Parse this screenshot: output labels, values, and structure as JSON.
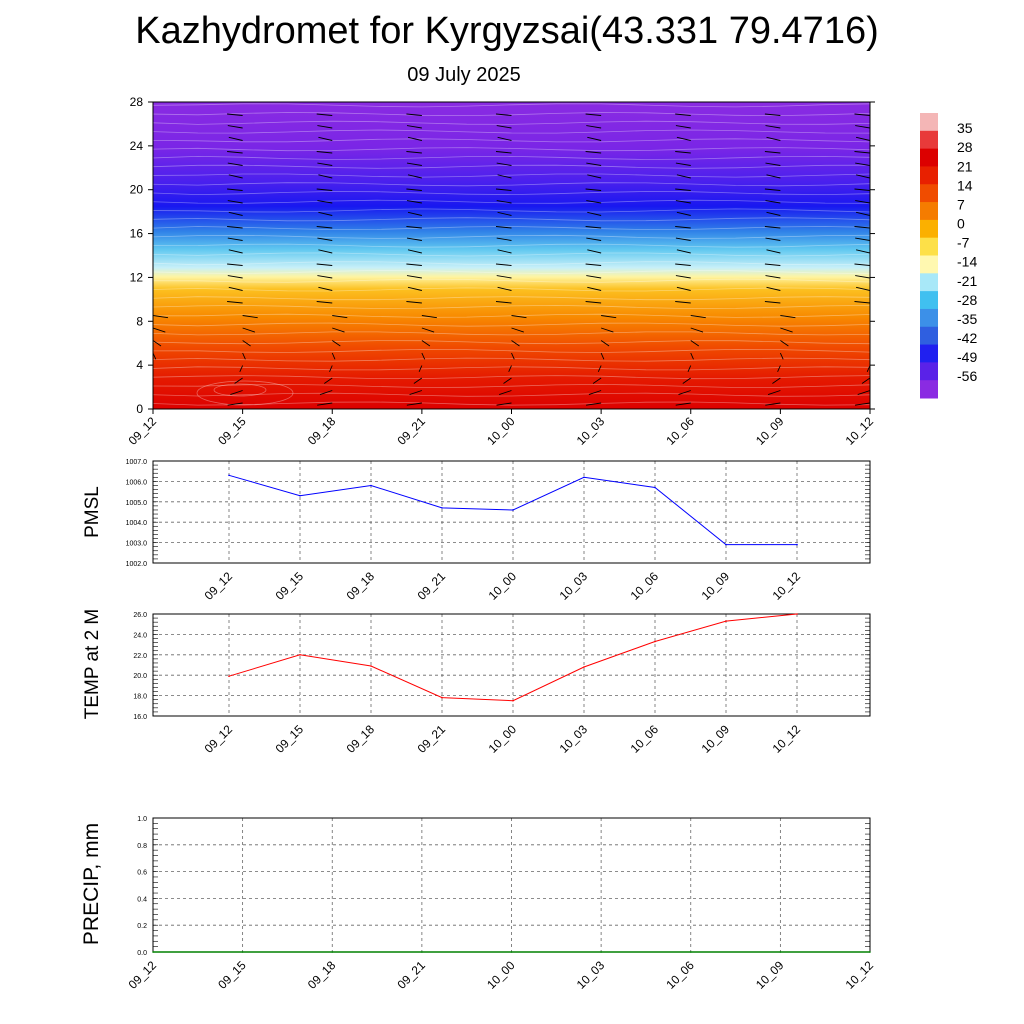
{
  "title": "Kazhydromet for Kyrgyzsai(43.331 79.4716)",
  "subtitle": "09 July 2025",
  "colorbar": {
    "labels": [
      "35",
      "28",
      "21",
      "14",
      "7",
      "0",
      "-7",
      "-14",
      "-21",
      "-28",
      "-35",
      "-42",
      "-49",
      "-56"
    ],
    "colors": [
      "#f4b6b6",
      "#e83a3a",
      "#dc0000",
      "#e82000",
      "#f04c00",
      "#f57c00",
      "#fbb000",
      "#fde048",
      "#fff8b0",
      "#a8e8f8",
      "#40c0f0",
      "#3c90e8",
      "#2f5fe0",
      "#2020f0",
      "#5a22e8",
      "#8a2be2"
    ]
  },
  "chart_data": [
    {
      "type": "heatmap",
      "name": "vertical-profile",
      "x": [
        "09_12",
        "09_15",
        "09_18",
        "09_21",
        "10_00",
        "10_03",
        "10_06",
        "10_09",
        "10_12"
      ],
      "y_ticks": [
        0,
        4,
        8,
        12,
        16,
        20,
        24,
        28
      ],
      "ylim": [
        0,
        28
      ],
      "value_range": [
        -56,
        35
      ],
      "description_bands": [
        {
          "y": [
            0,
            3
          ],
          "value": 28
        },
        {
          "y": [
            3,
            8
          ],
          "value": 14
        },
        {
          "y": [
            8,
            12
          ],
          "value": 0
        },
        {
          "y": [
            12,
            13
          ],
          "value": -14
        },
        {
          "y": [
            13,
            17
          ],
          "value": -28
        },
        {
          "y": [
            17,
            22
          ],
          "value": -49
        },
        {
          "y": [
            22,
            28
          ],
          "value": -56
        }
      ],
      "wind_barbs": true
    },
    {
      "type": "line",
      "ylabel": "PMSL",
      "x": [
        "09_12",
        "09_15",
        "09_18",
        "09_21",
        "10_00",
        "10_03",
        "10_06",
        "10_09",
        "10_12"
      ],
      "values": [
        1006.3,
        1005.3,
        1005.8,
        1004.7,
        1004.6,
        1006.2,
        1005.7,
        1002.9,
        1002.9
      ],
      "y_ticks": [
        "1002.0",
        "1003.0",
        "1004.0",
        "1005.0",
        "1006.0",
        "1007.0"
      ],
      "ylim": [
        1002.0,
        1007.0
      ],
      "color": "#0000ff",
      "grid": true
    },
    {
      "type": "line",
      "ylabel": "TEMP at 2 M",
      "x": [
        "09_12",
        "09_15",
        "09_18",
        "09_21",
        "10_00",
        "10_03",
        "10_06",
        "10_09",
        "10_12"
      ],
      "values": [
        19.9,
        22.0,
        20.9,
        17.8,
        17.5,
        20.8,
        23.3,
        25.3,
        26.0
      ],
      "y_ticks": [
        "16.0",
        "18.0",
        "20.0",
        "22.0",
        "24.0",
        "26.0"
      ],
      "ylim": [
        16.0,
        26.0
      ],
      "color": "#ff0000",
      "grid": true
    },
    {
      "type": "line",
      "ylabel": "PRECIP, mm",
      "x": [
        "09_12",
        "09_15",
        "09_18",
        "09_21",
        "10_00",
        "10_03",
        "10_06",
        "10_09",
        "10_12"
      ],
      "values": [
        0,
        0,
        0,
        0,
        0,
        0,
        0,
        0,
        0
      ],
      "y_ticks": [
        "0.0",
        "0.2",
        "0.4",
        "0.6",
        "0.8",
        "1.0"
      ],
      "ylim": [
        0.0,
        1.0
      ],
      "color": "#008000",
      "grid": true
    }
  ]
}
